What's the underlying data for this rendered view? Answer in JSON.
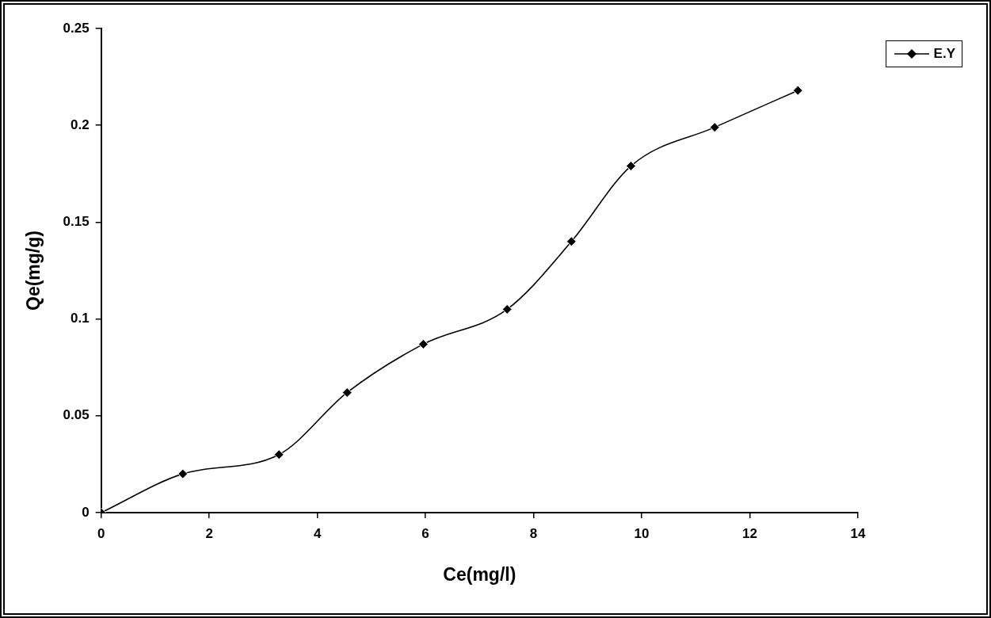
{
  "chart_data": {
    "type": "line",
    "xlabel": "Ce(mg/l)",
    "ylabel": "Qe(mg/g)",
    "xlim": [
      0,
      14
    ],
    "xticks": [
      0,
      2,
      4,
      6,
      8,
      10,
      12,
      14
    ],
    "ylim": [
      0,
      0.25
    ],
    "yticks": [
      0,
      0.05,
      0.1,
      0.15,
      0.2,
      0.25
    ],
    "x": [
      0,
      1.51,
      3.29,
      4.55,
      5.96,
      7.51,
      8.7,
      9.8,
      11.35,
      12.89
    ],
    "series": [
      {
        "name": "E.Y",
        "color": "#000000",
        "values": [
          0,
          0.02,
          0.03,
          0.062,
          0.087,
          0.105,
          0.14,
          0.179,
          0.199,
          0.218
        ]
      }
    ],
    "marker": "diamond",
    "line_style": "solid",
    "legend": "top right",
    "grid": false
  }
}
